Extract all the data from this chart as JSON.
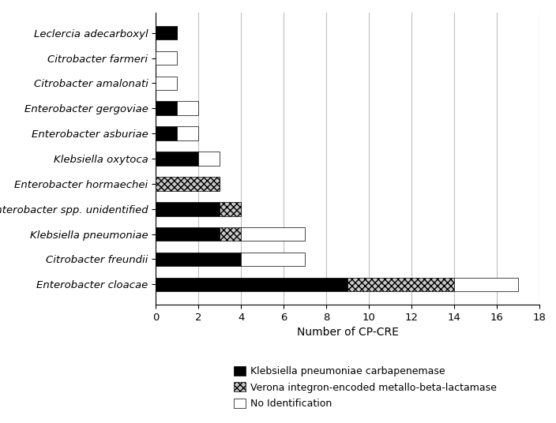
{
  "categories": [
    "Enterobacter cloacae",
    "Citrobacter freundii",
    "Klebsiella pneumoniae",
    "Enterobacter spp. unidentified",
    "Enterobacter hormaechei",
    "Klebsiella oxytoca",
    "Enterobacter asburiae",
    "Enterobacter gergoviae",
    "Citrobacter amalonati",
    "Citrobacter farmeri",
    "Leclercia adecarboxyl"
  ],
  "kpc": [
    9,
    4,
    3,
    3,
    0,
    2,
    1,
    1,
    0,
    0,
    1
  ],
  "vim": [
    5,
    0,
    1,
    1,
    3,
    0,
    0,
    0,
    0,
    0,
    0
  ],
  "noid": [
    3,
    3,
    3,
    0,
    0,
    1,
    1,
    1,
    1,
    1,
    0
  ],
  "kpc_color": "#000000",
  "vim_color": "#c8c8c8",
  "vim_hatch": "xxxx",
  "noid_color": "#ffffff",
  "noid_edgecolor": "#000000",
  "xlabel": "Number of CP-CRE",
  "xlim": [
    0,
    18
  ],
  "xticks": [
    0,
    2,
    4,
    6,
    8,
    10,
    12,
    14,
    16,
    18
  ],
  "legend_kpc": "Klebsiella pneumoniae carbapenemase",
  "legend_vim": "Verona integron-encoded metallo-beta-lactamase",
  "legend_noid": "No Identification",
  "figsize": [
    7.04,
    5.36
  ],
  "dpi": 100,
  "bar_height": 0.55
}
